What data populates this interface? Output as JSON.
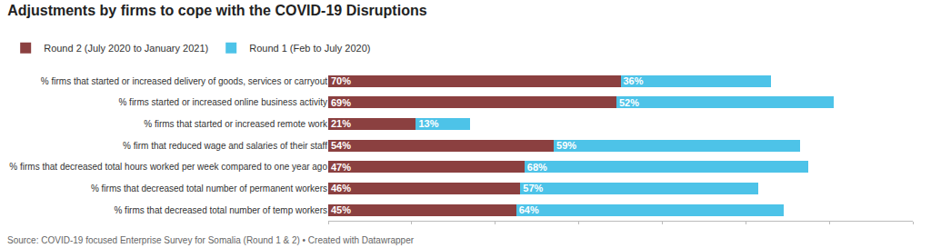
{
  "chart_data": {
    "type": "bar",
    "orientation": "horizontal",
    "stacked": true,
    "title": "Adjustments by firms to cope with the COVID-19 Disruptions",
    "source": "Source: COVID-19 focused Enterprise Survey for Somalia (Round 1 & 2) • Created with Datawrapper",
    "categories": [
      "% firms that started or increased delivery of goods, services or carryout",
      "% firms started or increased online business activity",
      "% firms that started or increased remote work",
      "% firm that reduced wage and salaries of their staff",
      "% firms that decreased total hours worked per week compared to one year ago",
      "% firms that decreased total number of permanent workers",
      "% firms that decreased total number of temp workers"
    ],
    "series": [
      {
        "name": "Round 2 (July 2020 to January 2021)",
        "color": "#8B4040",
        "values": [
          70,
          69,
          21,
          54,
          47,
          46,
          45
        ],
        "value_labels": [
          "70%",
          "69%",
          "21%",
          "54%",
          "47%",
          "46%",
          "45%"
        ]
      },
      {
        "name": "Round 1 (Feb to July 2020)",
        "color": "#4DC3E8",
        "values": [
          36,
          52,
          13,
          59,
          68,
          57,
          64
        ],
        "value_labels": [
          "36%",
          "52%",
          "13%",
          "59%",
          "68%",
          "57%",
          "64%"
        ]
      }
    ],
    "xlim": [
      0,
      140
    ],
    "xticks": [
      0,
      20,
      40,
      60,
      80,
      100,
      120,
      140
    ],
    "tick_labels": "y",
    "grid": false,
    "legend": "upper left",
    "data_labels": true
  }
}
